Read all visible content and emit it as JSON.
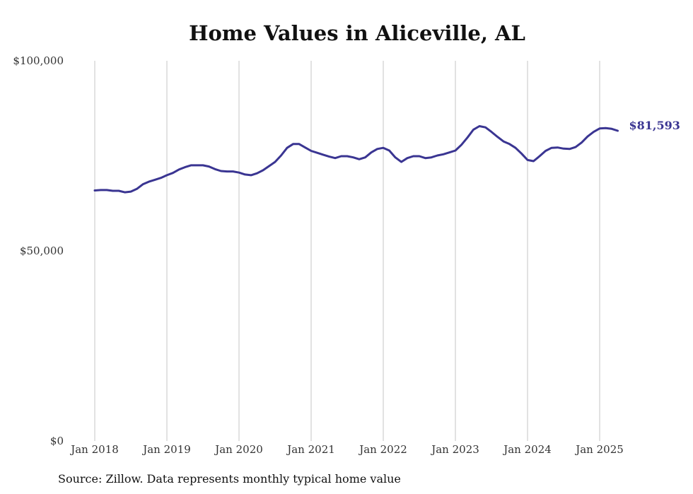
{
  "chart_data": {
    "type": "line",
    "title": "Home Values in Aliceville, AL",
    "source": "Source: Zillow. Data represents monthly typical home value",
    "ylim": [
      0,
      100000
    ],
    "y_ticks": [
      {
        "value": 0,
        "label": "$0"
      },
      {
        "value": 50000,
        "label": "$50,000"
      },
      {
        "value": 100000,
        "label": "$100,000"
      }
    ],
    "x_range": [
      "2018-01",
      "2025-04"
    ],
    "x_ticks": [
      {
        "date": "2018-01",
        "label": "Jan 2018"
      },
      {
        "date": "2019-01",
        "label": "Jan 2019"
      },
      {
        "date": "2020-01",
        "label": "Jan 2020"
      },
      {
        "date": "2021-01",
        "label": "Jan 2021"
      },
      {
        "date": "2022-01",
        "label": "Jan 2022"
      },
      {
        "date": "2023-01",
        "label": "Jan 2023"
      },
      {
        "date": "2024-01",
        "label": "Jan 2024"
      },
      {
        "date": "2025-01",
        "label": "Jan 2025"
      }
    ],
    "grid": "vertical",
    "line_color": "#3a3592",
    "end_label": "$81,593",
    "series": [
      {
        "x": [
          "2018-01",
          "2018-02",
          "2018-03",
          "2018-04",
          "2018-05",
          "2018-06",
          "2018-07",
          "2018-08",
          "2018-09",
          "2018-10",
          "2018-11",
          "2018-12",
          "2019-01",
          "2019-02",
          "2019-03",
          "2019-04",
          "2019-05",
          "2019-06",
          "2019-07",
          "2019-08",
          "2019-09",
          "2019-10",
          "2019-11",
          "2019-12",
          "2020-01",
          "2020-02",
          "2020-03",
          "2020-04",
          "2020-05",
          "2020-06",
          "2020-07",
          "2020-08",
          "2020-09",
          "2020-10",
          "2020-11",
          "2020-12",
          "2021-01",
          "2021-02",
          "2021-03",
          "2021-04",
          "2021-05",
          "2021-06",
          "2021-07",
          "2021-08",
          "2021-09",
          "2021-10",
          "2021-11",
          "2021-12",
          "2022-01",
          "2022-02",
          "2022-03",
          "2022-04",
          "2022-05",
          "2022-06",
          "2022-07",
          "2022-08",
          "2022-09",
          "2022-10",
          "2022-11",
          "2022-12",
          "2023-01",
          "2023-02",
          "2023-03",
          "2023-04",
          "2023-05",
          "2023-06",
          "2023-07",
          "2023-08",
          "2023-09",
          "2023-10",
          "2023-11",
          "2023-12",
          "2024-01",
          "2024-02",
          "2024-03",
          "2024-04",
          "2024-05",
          "2024-06",
          "2024-07",
          "2024-08",
          "2024-09",
          "2024-10",
          "2024-11",
          "2024-12",
          "2025-01",
          "2025-02",
          "2025-03",
          "2025-04"
        ],
        "values": [
          65900,
          66000,
          66000,
          65800,
          65800,
          65400,
          65600,
          66300,
          67500,
          68200,
          68700,
          69200,
          69900,
          70500,
          71400,
          72000,
          72500,
          72500,
          72500,
          72200,
          71500,
          71000,
          70900,
          70900,
          70600,
          70100,
          69900,
          70400,
          71200,
          72300,
          73400,
          75100,
          77100,
          78100,
          78100,
          77200,
          76300,
          75800,
          75300,
          74800,
          74400,
          74900,
          74900,
          74600,
          74100,
          74600,
          75900,
          76800,
          77100,
          76400,
          74600,
          73400,
          74400,
          74900,
          74900,
          74400,
          74600,
          75100,
          75400,
          75900,
          76400,
          77900,
          79800,
          81900,
          82800,
          82500,
          81300,
          80000,
          78800,
          78100,
          77100,
          75600,
          73900,
          73600,
          74900,
          76300,
          77100,
          77200,
          76900,
          76800,
          77300,
          78500,
          80100,
          81300,
          82200,
          82300,
          82100,
          81593
        ]
      }
    ]
  }
}
